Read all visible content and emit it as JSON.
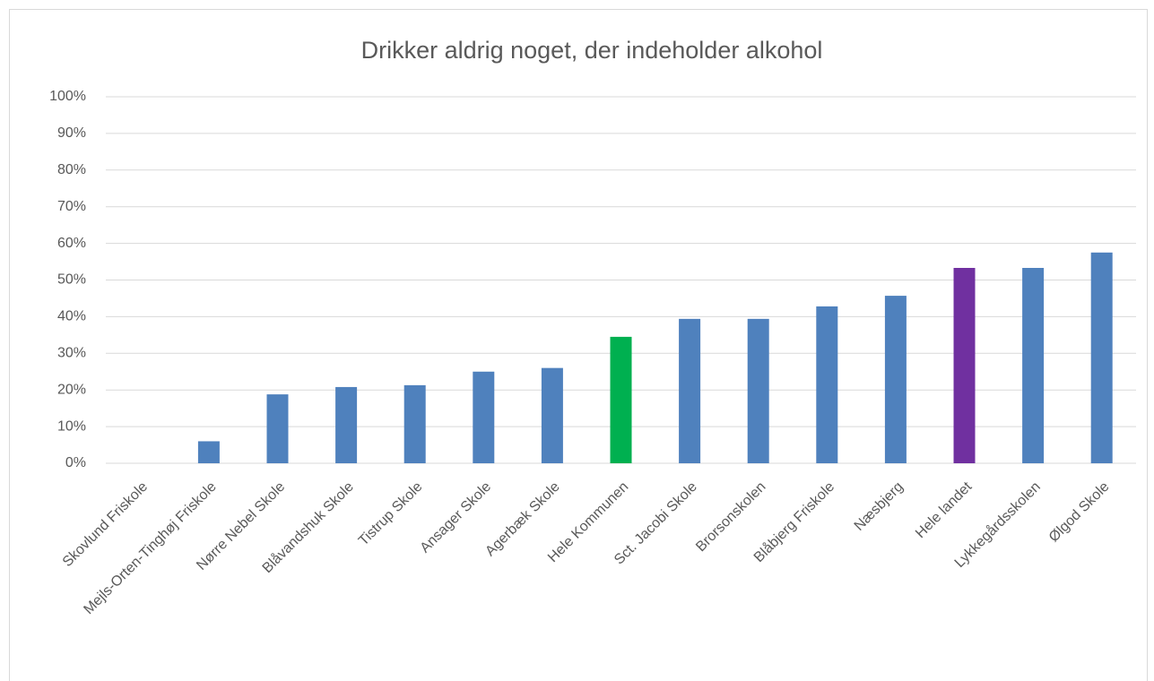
{
  "chart_data": {
    "type": "bar",
    "title": "Drikker aldrig noget, der indeholder alkohol",
    "categories": [
      "Skovlund Friskole",
      "Mejls-Orten-Tinghøj Friskole",
      "Nørre Nebel Skole",
      "Blåvandshuk Skole",
      "Tistrup Skole",
      "Ansager Skole",
      "Agerbæk Skole",
      "Hele Kommunen",
      "Sct. Jacobi Skole",
      "Brorsonskolen",
      "Blåbjerg Friskole",
      "Næsbjerg",
      "Hele landet",
      "Lykkegårdsskolen",
      "Ølgod Skole"
    ],
    "values": [
      0,
      6,
      18.8,
      20.8,
      21.3,
      25,
      26,
      34.5,
      39.4,
      39.4,
      42.8,
      45.7,
      53.3,
      53.3,
      57.5
    ],
    "colors": [
      "#4f81bd",
      "#4f81bd",
      "#4f81bd",
      "#4f81bd",
      "#4f81bd",
      "#4f81bd",
      "#4f81bd",
      "#00b050",
      "#4f81bd",
      "#4f81bd",
      "#4f81bd",
      "#4f81bd",
      "#7030a0",
      "#4f81bd",
      "#4f81bd"
    ],
    "ylim": [
      0,
      100
    ],
    "yticks": [
      {
        "value": 0,
        "label": "0%"
      },
      {
        "value": 10,
        "label": "10%"
      },
      {
        "value": 20,
        "label": "20%"
      },
      {
        "value": 30,
        "label": "30%"
      },
      {
        "value": 40,
        "label": "40%"
      },
      {
        "value": 50,
        "label": "50%"
      },
      {
        "value": 60,
        "label": "60%"
      },
      {
        "value": 70,
        "label": "70%"
      },
      {
        "value": 80,
        "label": "80%"
      },
      {
        "value": 90,
        "label": "90%"
      },
      {
        "value": 100,
        "label": "100%"
      }
    ],
    "grid": true
  }
}
